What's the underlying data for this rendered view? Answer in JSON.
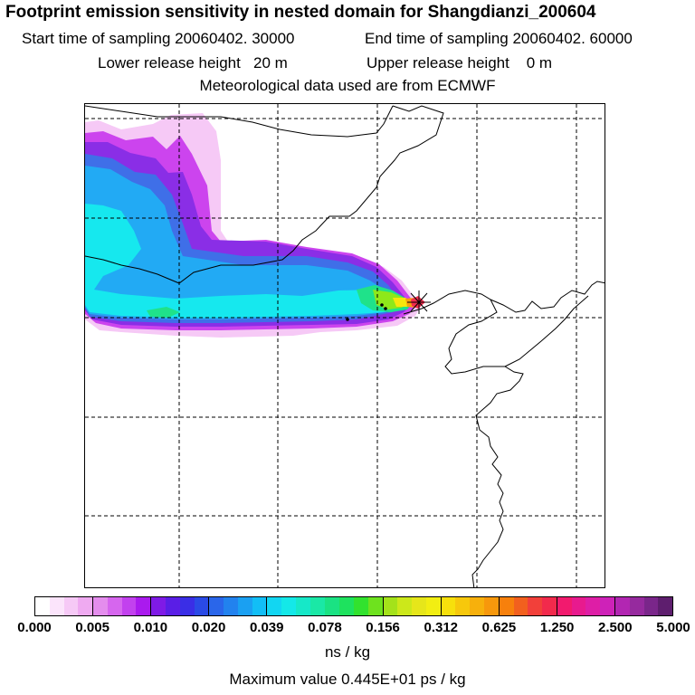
{
  "header": {
    "title": "Footprint emission sensitivity in nested domain for Shangdianzi_200604",
    "start_time": "Start time of sampling 20060402. 30000",
    "end_time": "End time of sampling 20060402. 60000",
    "lower_height": "Lower release height   20 m",
    "upper_height": "Upper release height    0 m",
    "met_data": "Meteorological data used are from ECMWF"
  },
  "map": {
    "receptor_marker": "star-marker",
    "colors": {
      "pink_light": "#f6c9f6",
      "magenta": "#cc44ee",
      "purple": "#8a2ee6",
      "blue": "#3f6fe8",
      "light_blue": "#22aaf4",
      "cyan": "#16e8ee",
      "green": "#1fe28a",
      "lime": "#8ee81a",
      "yellow": "#f7e60c",
      "orange": "#f7a10c",
      "red": "#f22a4c"
    }
  },
  "colorbar": {
    "labels": [
      "0.000",
      "0.005",
      "0.010",
      "0.020",
      "0.039",
      "0.078",
      "0.156",
      "0.312",
      "0.625",
      "1.250",
      "2.500",
      "5.000"
    ],
    "segments": [
      [
        "#ffffff",
        "#fbe4fb",
        "#f6c9f6",
        "#efaaf1"
      ],
      [
        "#e48ded",
        "#d666ee",
        "#c241ee",
        "#aa1aee"
      ],
      [
        "#7f1ae6",
        "#5a1ee6",
        "#3a2ee6",
        "#2a4ae6"
      ],
      [
        "#2a66ea",
        "#2282ee",
        "#1aa0f2",
        "#12bef6"
      ],
      [
        "#12d6f2",
        "#14e8e8",
        "#16e8c8",
        "#1ae8a6"
      ],
      [
        "#1ae283",
        "#1ee25e",
        "#32e22e",
        "#6ee21e"
      ],
      [
        "#a4e21a",
        "#cce81a",
        "#e6e61a",
        "#f2ee12"
      ],
      [
        "#f7e00c",
        "#f7c80c",
        "#f7b00c",
        "#f7980c"
      ],
      [
        "#f7800c",
        "#f2601e",
        "#f2403a",
        "#f22a4c"
      ],
      [
        "#f21a6e",
        "#e81a8e",
        "#de1ea6",
        "#ce22b8"
      ],
      [
        "#b226b2",
        "#962a9e",
        "#7a268a",
        "#5e1e6e"
      ]
    ],
    "units": "ns / kg",
    "max_value": "Maximum value  0.445E+01 ps / kg"
  }
}
